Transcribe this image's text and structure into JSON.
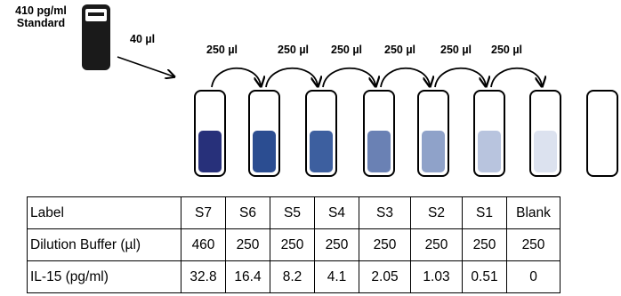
{
  "standard": {
    "concentration": "410 pg/ml",
    "name": "Standard",
    "transfer_volume": "40 µl",
    "vial_color": "#1a1a1a"
  },
  "transfers": [
    {
      "label": "250 µl"
    },
    {
      "label": "250 µl"
    },
    {
      "label": "250 µl"
    },
    {
      "label": "250 µl"
    },
    {
      "label": "250 µl"
    },
    {
      "label": "250 µl"
    }
  ],
  "tubes": [
    {
      "id": "S7",
      "fill": "#27307a"
    },
    {
      "id": "S6",
      "fill": "#2b4d91"
    },
    {
      "id": "S5",
      "fill": "#3d5f9f"
    },
    {
      "id": "S4",
      "fill": "#6a81b4"
    },
    {
      "id": "S3",
      "fill": "#8fa2c9"
    },
    {
      "id": "S2",
      "fill": "#b8c4de"
    },
    {
      "id": "S1",
      "fill": "#dce2ef"
    },
    {
      "id": "Blank",
      "fill": ""
    }
  ],
  "table": {
    "rows": [
      {
        "label": "Label",
        "cells": [
          "S7",
          "S6",
          "S5",
          "S4",
          "S3",
          "S2",
          "S1",
          "Blank"
        ]
      },
      {
        "label": "Dilution Buffer (µl)",
        "cells": [
          "460",
          "250",
          "250",
          "250",
          "250",
          "250",
          "250",
          "250"
        ]
      },
      {
        "label": "IL-15 (pg/ml)",
        "cells": [
          "32.8",
          "16.4",
          "8.2",
          "4.1",
          "2.05",
          "1.03",
          "0.51",
          "0"
        ]
      }
    ]
  }
}
